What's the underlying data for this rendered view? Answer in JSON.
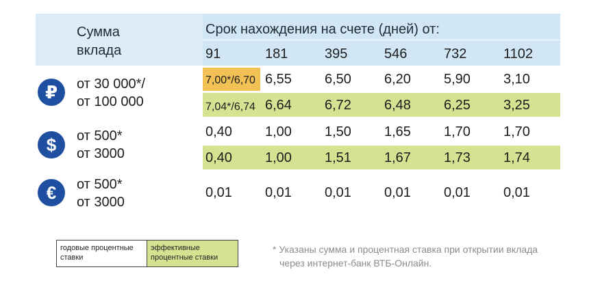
{
  "header": {
    "sum_line1": "Сумма",
    "sum_line2": "вклада",
    "term_title": "Срок нахождения на счете (дней) от:",
    "terms": [
      "91",
      "181",
      "395",
      "546",
      "732",
      "1102"
    ]
  },
  "rows": [
    {
      "icon": "₽",
      "icon_name": "ruble-icon",
      "amount_line1": "от 30 000*/",
      "amount_line2": "от 100 000",
      "annual": [
        "7,00*/6,70",
        "6,55",
        "6,50",
        "6,20",
        "5,90",
        "3,10"
      ],
      "effective": [
        "7,04*/6,74",
        "6,64",
        "6,72",
        "6,48",
        "6,25",
        "3,25"
      ]
    },
    {
      "icon": "$",
      "icon_name": "dollar-icon",
      "amount_line1": "от 500*",
      "amount_line2": "от 3000",
      "annual": [
        "0,40",
        "1,00",
        "1,50",
        "1,65",
        "1,70",
        "1,70"
      ],
      "effective": [
        "0,40",
        "1,00",
        "1,51",
        "1,67",
        "1,73",
        "1,74"
      ]
    },
    {
      "icon": "€",
      "icon_name": "euro-icon",
      "amount_line1": "от 500*",
      "amount_line2": "от 3000",
      "annual": [
        "0,01",
        "0,01",
        "0,01",
        "0,01",
        "0,01",
        "0,01"
      ]
    }
  ],
  "legend": {
    "annual_label": "годовые процентные ставки",
    "effective_label": "эффективные процентные ставки",
    "annual_color": "#ffffff",
    "effective_color": "#d6e291",
    "highlight_color": "#f2c156"
  },
  "footnote": {
    "line1": "* Указаны сумма и процентная ставка при открытии вклада",
    "line2": "через интернет-банк ВТБ-Онлайн."
  }
}
